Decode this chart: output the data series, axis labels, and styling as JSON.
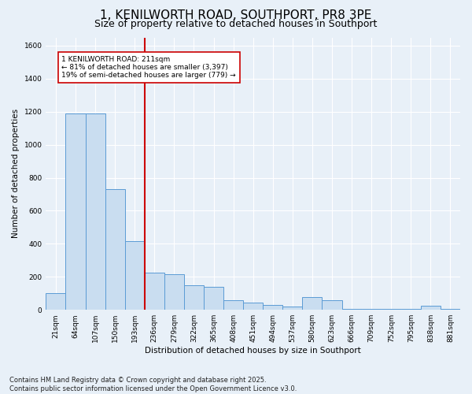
{
  "title": "1, KENILWORTH ROAD, SOUTHPORT, PR8 3PE",
  "subtitle": "Size of property relative to detached houses in Southport",
  "xlabel": "Distribution of detached houses by size in Southport",
  "ylabel": "Number of detached properties",
  "categories": [
    "21sqm",
    "64sqm",
    "107sqm",
    "150sqm",
    "193sqm",
    "236sqm",
    "279sqm",
    "322sqm",
    "365sqm",
    "408sqm",
    "451sqm",
    "494sqm",
    "537sqm",
    "580sqm",
    "623sqm",
    "666sqm",
    "709sqm",
    "752sqm",
    "795sqm",
    "838sqm",
    "881sqm"
  ],
  "values": [
    100,
    1190,
    1190,
    730,
    415,
    225,
    215,
    150,
    140,
    60,
    45,
    30,
    18,
    75,
    60,
    8,
    8,
    5,
    5,
    25,
    8
  ],
  "bar_color": "#c9ddf0",
  "bar_edge_color": "#5b9bd5",
  "background_color": "#e8f0f8",
  "grid_color": "#ffffff",
  "vline_x": 4.5,
  "vline_color": "#cc0000",
  "annotation_text": "1 KENILWORTH ROAD: 211sqm\n← 81% of detached houses are smaller (3,397)\n19% of semi-detached houses are larger (779) →",
  "annotation_box_color": "#ffffff",
  "annotation_box_edge": "#cc0000",
  "ylim": [
    0,
    1650
  ],
  "yticks": [
    0,
    200,
    400,
    600,
    800,
    1000,
    1200,
    1400,
    1600
  ],
  "footer": "Contains HM Land Registry data © Crown copyright and database right 2025.\nContains public sector information licensed under the Open Government Licence v3.0.",
  "title_fontsize": 11,
  "subtitle_fontsize": 9,
  "label_fontsize": 7.5,
  "tick_fontsize": 6.5,
  "annotation_fontsize": 6.5
}
